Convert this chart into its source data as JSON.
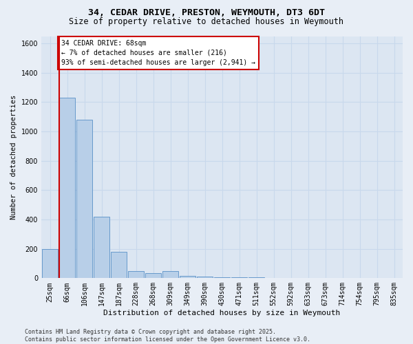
{
  "title1": "34, CEDAR DRIVE, PRESTON, WEYMOUTH, DT3 6DT",
  "title2": "Size of property relative to detached houses in Weymouth",
  "xlabel": "Distribution of detached houses by size in Weymouth",
  "ylabel": "Number of detached properties",
  "categories": [
    "25sqm",
    "66sqm",
    "106sqm",
    "147sqm",
    "187sqm",
    "228sqm",
    "268sqm",
    "309sqm",
    "349sqm",
    "390sqm",
    "430sqm",
    "471sqm",
    "511sqm",
    "552sqm",
    "592sqm",
    "633sqm",
    "673sqm",
    "714sqm",
    "754sqm",
    "795sqm",
    "835sqm"
  ],
  "values": [
    200,
    1230,
    1080,
    420,
    180,
    50,
    35,
    50,
    15,
    10,
    5,
    5,
    5,
    3,
    3,
    3,
    3,
    2,
    2,
    2,
    2
  ],
  "bar_color": "#b8cfe8",
  "bar_edge_color": "#6699cc",
  "property_line_color": "#cc0000",
  "property_line_bin": 1,
  "annotation_text": "34 CEDAR DRIVE: 68sqm\n← 7% of detached houses are smaller (216)\n93% of semi-detached houses are larger (2,941) →",
  "annotation_box_facecolor": "#ffffff",
  "annotation_box_edgecolor": "#cc0000",
  "ylim": [
    0,
    1650
  ],
  "yticks": [
    0,
    200,
    400,
    600,
    800,
    1000,
    1200,
    1400,
    1600
  ],
  "grid_color": "#c8d8ec",
  "bg_color": "#e8eef6",
  "plot_bg_color": "#dce6f2",
  "footer_text": "Contains HM Land Registry data © Crown copyright and database right 2025.\nContains public sector information licensed under the Open Government Licence v3.0.",
  "title1_fontsize": 9.5,
  "title2_fontsize": 8.5,
  "xlabel_fontsize": 8,
  "ylabel_fontsize": 7.5,
  "tick_fontsize": 7,
  "annot_fontsize": 7,
  "footer_fontsize": 6
}
